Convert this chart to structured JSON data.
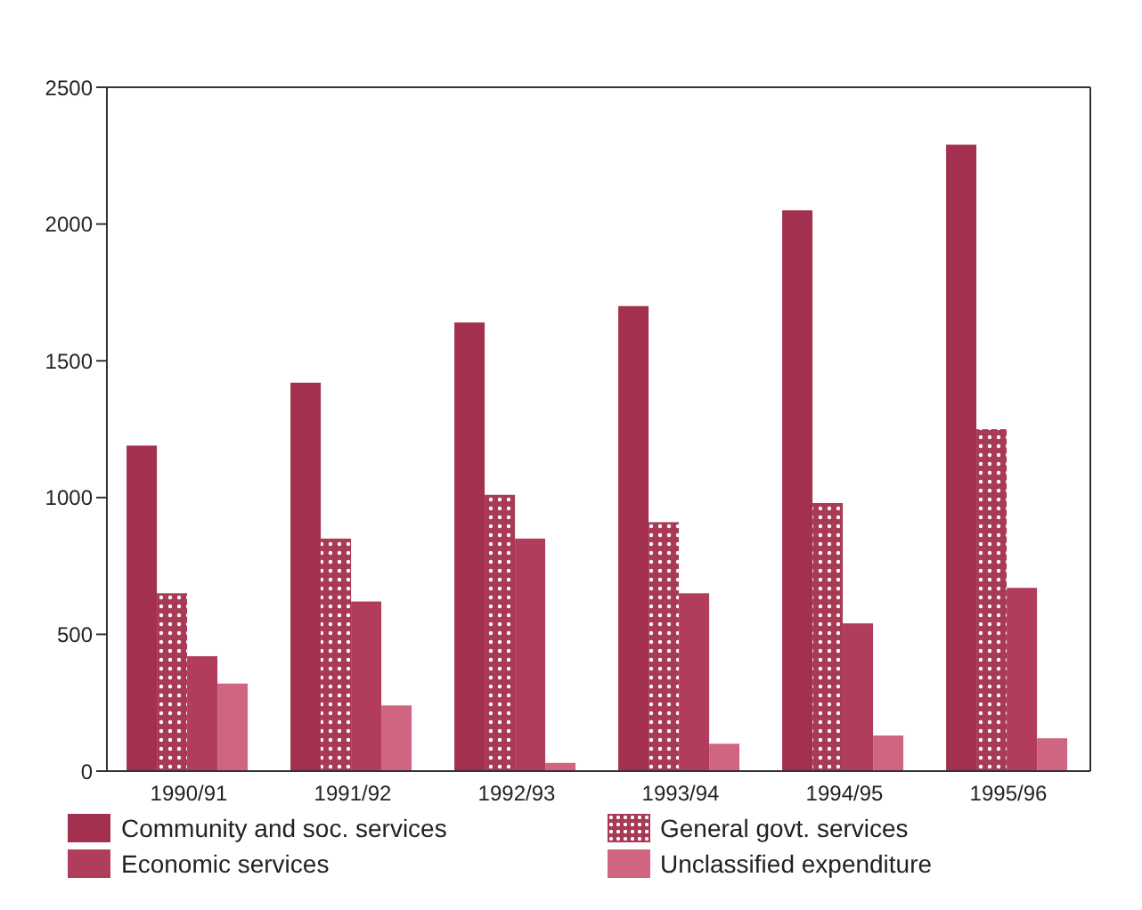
{
  "chart_data": {
    "type": "bar",
    "categories": [
      "1990/91",
      "1991/92",
      "1992/93",
      "1993/94",
      "1994/95",
      "1995/96"
    ],
    "series": [
      {
        "name": "Community and soc. services",
        "color": "#a3304f",
        "values": [
          1190,
          1420,
          1640,
          1700,
          2050,
          2290
        ]
      },
      {
        "name": "General govt. services",
        "color": "#a83a55",
        "values": [
          650,
          850,
          1010,
          910,
          980,
          1250
        ]
      },
      {
        "name": "Economic services",
        "color": "#b23c5c",
        "values": [
          420,
          620,
          850,
          650,
          540,
          670
        ]
      },
      {
        "name": "Unclassified expenditure",
        "color": "#cf6580",
        "values": [
          320,
          240,
          30,
          100,
          130,
          120
        ]
      }
    ],
    "ylim": [
      0,
      2500
    ],
    "yticks": [
      0,
      500,
      1000,
      1500,
      2000,
      2500
    ],
    "grid": false,
    "legend": "bottom"
  }
}
